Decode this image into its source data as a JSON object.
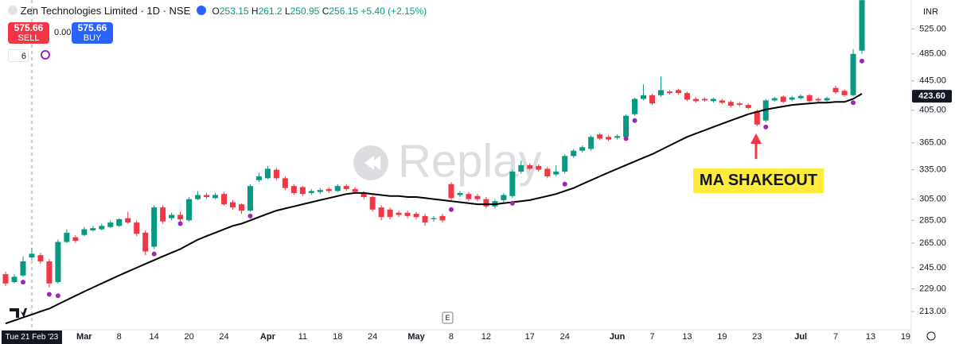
{
  "header": {
    "symbol": "Zen Technologies Limited · 1D · NSE",
    "ohlc_prefixes": [
      "O",
      "H",
      "L",
      "C"
    ],
    "change": "+5.40 (+2.15%)",
    "sell": "SELL",
    "buy": "BUY",
    "spread": "0.00",
    "indicator_count": "6"
  },
  "chart_data": {
    "type": "candlestick",
    "currency": "INR",
    "watermark": "Replay",
    "earnings_marker": "E",
    "annotation": "MA SHAKEOUT",
    "log_scale": true,
    "grid": false,
    "up_color": "#089981",
    "down_color": "#f23645",
    "ma_color": "#000000",
    "dot_color": "#9c27b0",
    "ylim": [
      201,
      576
    ],
    "yticks": [
      {
        "value": 525,
        "label": "525.00"
      },
      {
        "value": 485,
        "label": "485.00"
      },
      {
        "value": 445,
        "label": "445.00"
      },
      {
        "value": 405,
        "label": "405.00"
      },
      {
        "value": 365,
        "label": "365.00"
      },
      {
        "value": 335,
        "label": "335.00"
      },
      {
        "value": 305,
        "label": "305.00"
      },
      {
        "value": 285,
        "label": "285.00"
      },
      {
        "value": 265,
        "label": "265.00"
      },
      {
        "value": 245,
        "label": "245.00"
      },
      {
        "value": 229,
        "label": "229.00"
      },
      {
        "value": 213,
        "label": "213.00"
      }
    ],
    "price_label": {
      "value": 423.6,
      "label": "423.60"
    },
    "categories": [
      null,
      null,
      null,
      "Tue 21 Feb '23",
      null,
      null,
      null,
      null,
      null,
      "Mar",
      null,
      null,
      null,
      "8",
      null,
      null,
      null,
      "14",
      null,
      null,
      null,
      "20",
      null,
      null,
      null,
      "24",
      null,
      null,
      null,
      null,
      "Apr",
      null,
      null,
      null,
      "11",
      null,
      null,
      null,
      "18",
      null,
      null,
      null,
      "24",
      null,
      null,
      null,
      null,
      "May",
      null,
      null,
      null,
      "8",
      null,
      null,
      null,
      "12",
      null,
      null,
      null,
      null,
      "17",
      null,
      null,
      null,
      "24",
      null,
      null,
      null,
      null,
      null,
      "Jun",
      null,
      null,
      null,
      "7",
      null,
      null,
      null,
      "13",
      null,
      null,
      null,
      "19",
      null,
      null,
      null,
      "23",
      null,
      null,
      null,
      null,
      "Jul",
      null,
      null,
      null,
      "7",
      null,
      null,
      null,
      "13",
      null,
      null,
      null,
      "19"
    ],
    "open": [
      240,
      234,
      239,
      253.15,
      255,
      250,
      234,
      266,
      270,
      272,
      276,
      277,
      279,
      280,
      287,
      283,
      274,
      262,
      297,
      287,
      290,
      285,
      305,
      309,
      306,
      310,
      302,
      300,
      294,
      324,
      326,
      335,
      326,
      318,
      317,
      311,
      312,
      315,
      313,
      318,
      315,
      311,
      307,
      297,
      295,
      292,
      292,
      291,
      289,
      286,
      289,
      320,
      309,
      310,
      308,
      305,
      298,
      304,
      308,
      333,
      340,
      339,
      336,
      330,
      333,
      350,
      356,
      358,
      375,
      372,
      371,
      372,
      400,
      420,
      425,
      425,
      430,
      432,
      428,
      420,
      420,
      417,
      418,
      416,
      414,
      412,
      404,
      392,
      418,
      423,
      419,
      421,
      425,
      420,
      418,
      435,
      431,
      425,
      490,
      null,
      null,
      null,
      null,
      null
    ],
    "high": [
      242,
      240,
      254,
      261.2,
      257,
      252,
      268,
      277,
      272,
      279,
      280,
      282,
      285,
      287,
      293,
      285,
      276,
      299,
      299,
      292,
      293,
      307,
      313,
      311,
      311,
      312,
      304,
      301,
      320,
      332,
      339,
      337,
      328,
      320,
      318,
      315,
      316,
      317,
      320,
      320,
      317,
      313,
      309,
      299,
      297,
      294,
      294,
      293,
      291,
      289,
      291,
      322,
      313,
      312,
      310,
      307,
      305,
      311,
      335,
      345,
      342,
      341,
      338,
      340,
      352,
      358,
      362,
      374,
      377,
      374,
      375,
      400,
      422,
      440,
      427,
      451,
      432,
      434,
      430,
      422,
      422,
      422,
      420,
      418,
      416,
      414,
      406,
      420,
      423,
      425,
      424,
      426,
      427,
      422,
      423,
      438,
      433,
      492,
      580,
      null,
      null,
      null,
      null,
      null
    ],
    "low": [
      231,
      233,
      238,
      250.95,
      248,
      230,
      233,
      265,
      265,
      271,
      275,
      276,
      278,
      279,
      282,
      271,
      255,
      260,
      282,
      285,
      284,
      284,
      304,
      305,
      305,
      299,
      295,
      291,
      293,
      322,
      325,
      324,
      314,
      309,
      308,
      309,
      310,
      311,
      312,
      313,
      310,
      305,
      293,
      285,
      286,
      288,
      287,
      286,
      280,
      284,
      283,
      304,
      307,
      303,
      303,
      296,
      296,
      302,
      306,
      331,
      334,
      333,
      326,
      328,
      331,
      348,
      354,
      356,
      368,
      367,
      369,
      370,
      398,
      418,
      412,
      423,
      426,
      426,
      417,
      415,
      416,
      415,
      413,
      409,
      410,
      406,
      385,
      390,
      416,
      414,
      417,
      419,
      415,
      416,
      416,
      427,
      423,
      423,
      485,
      null,
      null,
      null,
      null,
      null
    ],
    "close": [
      233,
      238,
      250,
      256.15,
      250,
      233,
      266,
      274,
      267,
      277,
      278,
      280,
      283,
      286,
      283,
      273,
      258,
      297,
      284,
      290,
      286,
      305,
      309,
      307,
      309,
      300,
      297,
      294,
      318,
      328,
      336,
      326,
      316,
      311,
      310,
      313,
      314,
      313,
      318,
      315,
      312,
      307,
      295,
      288,
      288,
      290,
      289,
      288,
      283,
      287,
      285,
      306,
      311,
      305,
      305,
      298,
      303,
      309,
      333,
      340,
      336,
      335,
      328,
      333,
      350,
      356,
      360,
      372,
      370,
      369,
      373,
      398,
      420,
      425,
      414,
      432,
      428,
      428,
      419,
      417,
      418,
      420,
      415,
      411,
      412,
      408,
      387,
      418,
      421,
      416,
      422,
      424,
      417,
      418,
      421,
      429,
      425,
      485,
      575.66,
      null,
      null,
      null,
      null,
      null
    ],
    "ma": [
      205,
      207,
      209,
      211,
      213,
      215,
      218,
      221,
      224,
      227,
      230,
      233,
      236,
      239,
      242,
      245,
      248,
      251,
      254,
      257,
      260,
      264,
      268,
      271,
      274,
      277,
      280,
      282,
      285,
      288,
      291,
      294,
      296,
      298,
      300,
      302,
      304,
      306,
      308,
      310,
      311,
      311,
      310,
      309,
      308,
      308,
      307,
      307,
      306,
      305,
      304,
      303,
      302,
      301,
      300,
      300,
      300,
      301,
      302,
      303,
      304,
      306,
      308,
      310,
      313,
      316,
      320,
      324,
      328,
      332,
      336,
      340,
      344,
      348,
      352,
      357,
      362,
      367,
      372,
      376,
      380,
      384,
      388,
      392,
      396,
      400,
      403,
      406,
      408,
      410,
      412,
      413,
      414,
      415,
      415,
      416,
      416,
      420,
      427,
      null,
      null,
      null,
      null,
      null
    ],
    "dots": [
      null,
      null,
      234,
      null,
      null,
      225,
      224,
      null,
      null,
      null,
      null,
      null,
      null,
      null,
      null,
      null,
      null,
      256,
      null,
      null,
      282,
      null,
      null,
      null,
      null,
      null,
      null,
      null,
      289,
      null,
      null,
      null,
      null,
      null,
      null,
      null,
      null,
      null,
      null,
      null,
      null,
      null,
      null,
      null,
      null,
      null,
      null,
      null,
      null,
      null,
      null,
      295,
      null,
      null,
      null,
      null,
      null,
      null,
      301,
      null,
      null,
      null,
      null,
      null,
      320,
      null,
      null,
      null,
      null,
      null,
      null,
      370,
      392,
      null,
      null,
      null,
      null,
      null,
      null,
      null,
      null,
      null,
      null,
      null,
      null,
      null,
      null,
      384,
      null,
      null,
      null,
      null,
      null,
      null,
      null,
      null,
      null,
      415,
      474,
      null,
      null,
      null,
      null,
      null
    ]
  }
}
